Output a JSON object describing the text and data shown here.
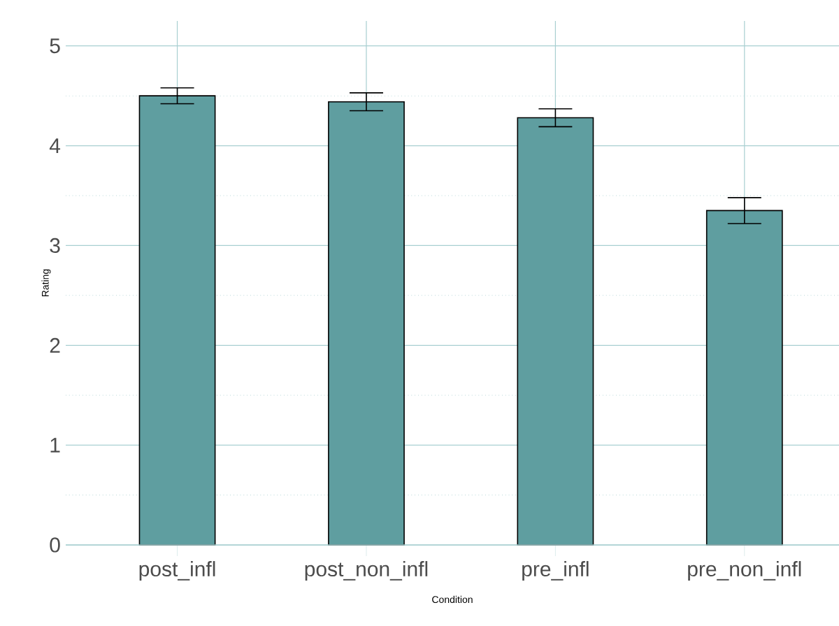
{
  "chart_data": {
    "type": "bar",
    "xlabel": "Condition",
    "ylabel": "Rating",
    "categories": [
      "post_infl",
      "post_non_infl",
      "pre_infl",
      "pre_non_infl"
    ],
    "values": [
      4.5,
      4.44,
      4.28,
      3.35
    ],
    "errors": [
      0.08,
      0.09,
      0.09,
      0.13
    ],
    "color": "#5f9ea0",
    "ylim": [
      0,
      5.25
    ],
    "yticks": [
      0,
      {
        "value": 0.5,
        "label": null
      },
      1,
      {
        "value": 1.5,
        "label": null
      },
      2,
      {
        "value": 2.5,
        "label": null
      },
      3,
      {
        "value": 3.5,
        "label": null
      },
      4,
      {
        "value": 4.5,
        "label": null
      },
      5
    ],
    "grid": true
  }
}
